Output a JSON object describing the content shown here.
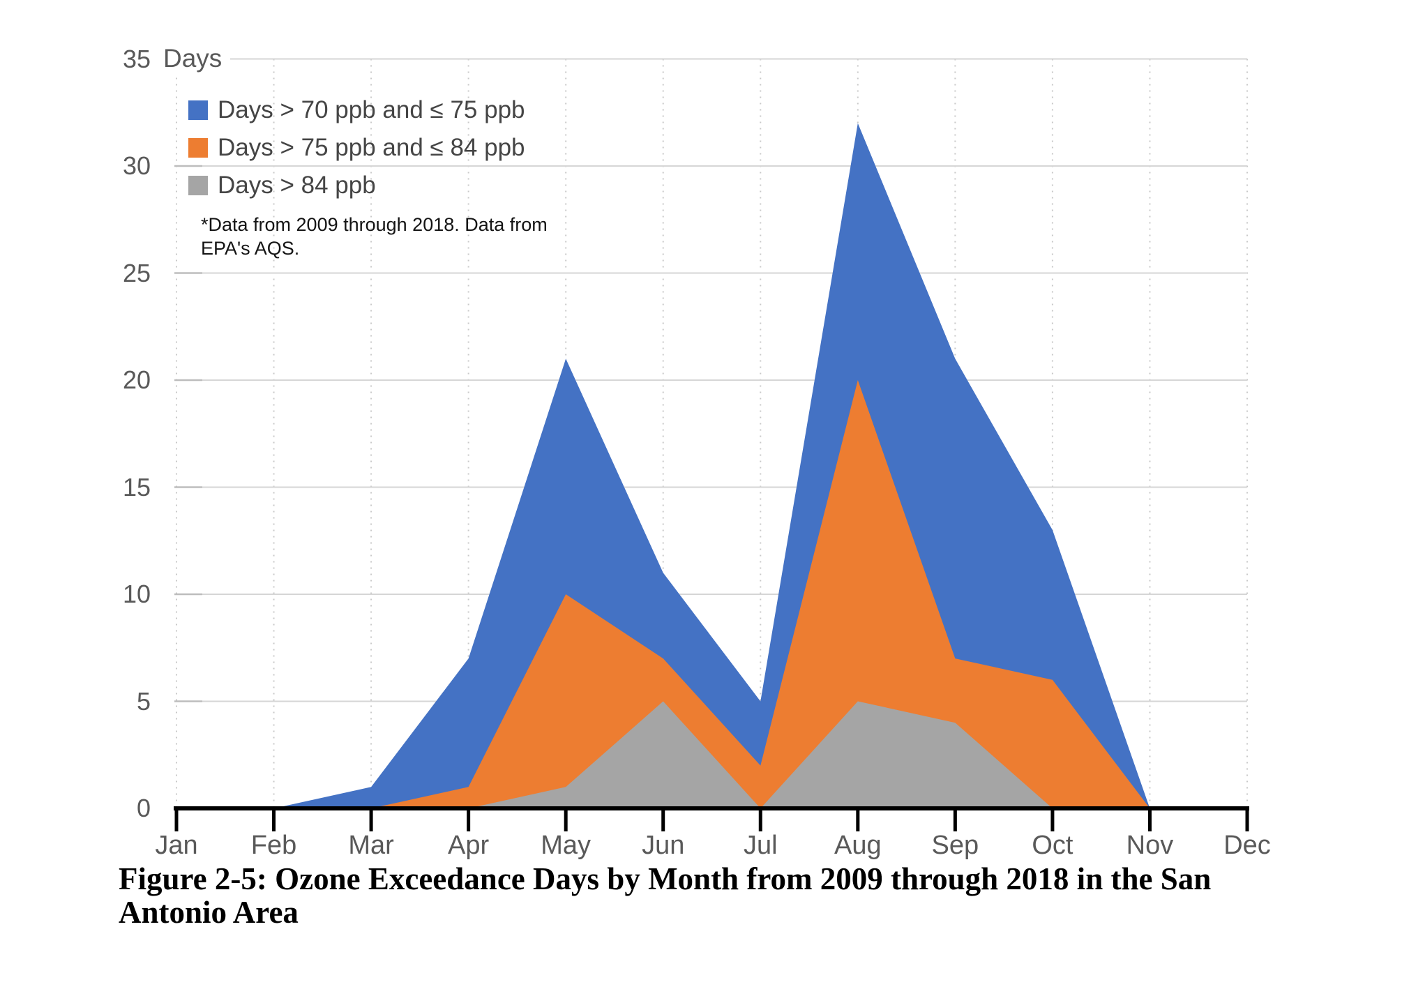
{
  "chart_data": {
    "type": "area",
    "stacked": true,
    "caption": "Figure 2-5: Ozone Exceedance Days by Month from 2009 through 2018 in the San Antonio Area",
    "ylabel": "Days",
    "annotation": "*Data from 2009 through 2018. Data from EPA's AQS.",
    "categories": [
      "Jan",
      "Feb",
      "Mar",
      "Apr",
      "May",
      "Jun",
      "Jul",
      "Aug",
      "Sep",
      "Oct",
      "Nov",
      "Dec"
    ],
    "series": [
      {
        "name": "Days > 70 ppb and ≤ 75 ppb",
        "color": "#4472C4",
        "values": [
          0,
          0,
          1,
          6,
          11,
          4,
          3,
          12,
          14,
          7,
          0,
          0
        ]
      },
      {
        "name": "Days > 75 ppb and ≤ 84 ppb",
        "color": "#ED7D31",
        "values": [
          0,
          0,
          0,
          1,
          9,
          2,
          2,
          15,
          3,
          6,
          0,
          0
        ]
      },
      {
        "name": "Days > 84 ppb",
        "color": "#A5A5A5",
        "values": [
          0,
          0,
          0,
          0,
          1,
          5,
          0,
          5,
          4,
          0,
          0,
          0
        ]
      }
    ],
    "stack_order_bottom_to_top": [
      "Days > 84 ppb",
      "Days > 75 ppb and ≤ 84 ppb",
      "Days > 70 ppb and ≤ 75 ppb"
    ],
    "stacked_totals": [
      0,
      0,
      1,
      7,
      21,
      11,
      5,
      32,
      21,
      13,
      0,
      0
    ],
    "ylim": [
      0,
      35
    ],
    "ytick_step": 5,
    "legend_position": "top-left",
    "grid": {
      "horizontal": "solid",
      "vertical": "dotted"
    }
  }
}
